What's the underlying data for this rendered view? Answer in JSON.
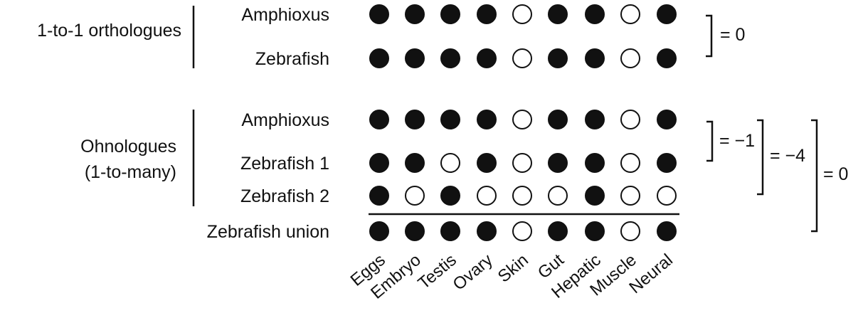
{
  "tissues": [
    "Eggs",
    "Embryo",
    "Testis",
    "Ovary",
    "Skin",
    "Gut",
    "Hepatic",
    "Muscle",
    "Neural"
  ],
  "groups": [
    {
      "label_lines": [
        "1-to-1 orthologues"
      ]
    },
    {
      "label_lines": [
        "Ohnologues",
        "(1-to-many)"
      ]
    }
  ],
  "rows": [
    {
      "label": "Amphioxus",
      "group": 0,
      "pattern": [
        1,
        1,
        1,
        1,
        0,
        1,
        1,
        0,
        1
      ]
    },
    {
      "label": "Zebrafish",
      "group": 0,
      "pattern": [
        1,
        1,
        1,
        1,
        0,
        1,
        1,
        0,
        1
      ]
    },
    {
      "label": "Amphioxus",
      "group": 1,
      "pattern": [
        1,
        1,
        1,
        1,
        0,
        1,
        1,
        0,
        1
      ]
    },
    {
      "label": "Zebrafish 1",
      "group": 1,
      "pattern": [
        1,
        1,
        0,
        1,
        0,
        1,
        1,
        0,
        1
      ]
    },
    {
      "label": "Zebrafish 2",
      "group": 1,
      "pattern": [
        1,
        0,
        1,
        0,
        0,
        0,
        1,
        0,
        0
      ]
    },
    {
      "label": "Zebrafish union",
      "group": 1,
      "pattern": [
        1,
        1,
        1,
        1,
        0,
        1,
        1,
        0,
        1
      ]
    }
  ],
  "brackets": [
    {
      "from_row": 0,
      "to_row": 1,
      "text": "= 0"
    },
    {
      "from_row": 2,
      "to_row": 3,
      "text": "= −1"
    },
    {
      "from_row": 2,
      "to_row": 4,
      "text": "= −4"
    },
    {
      "from_row": 2,
      "to_row": 5,
      "text": "= 0"
    }
  ],
  "colors": {
    "filled": "#111111",
    "empty": "#ffffff",
    "stroke": "#111111"
  }
}
